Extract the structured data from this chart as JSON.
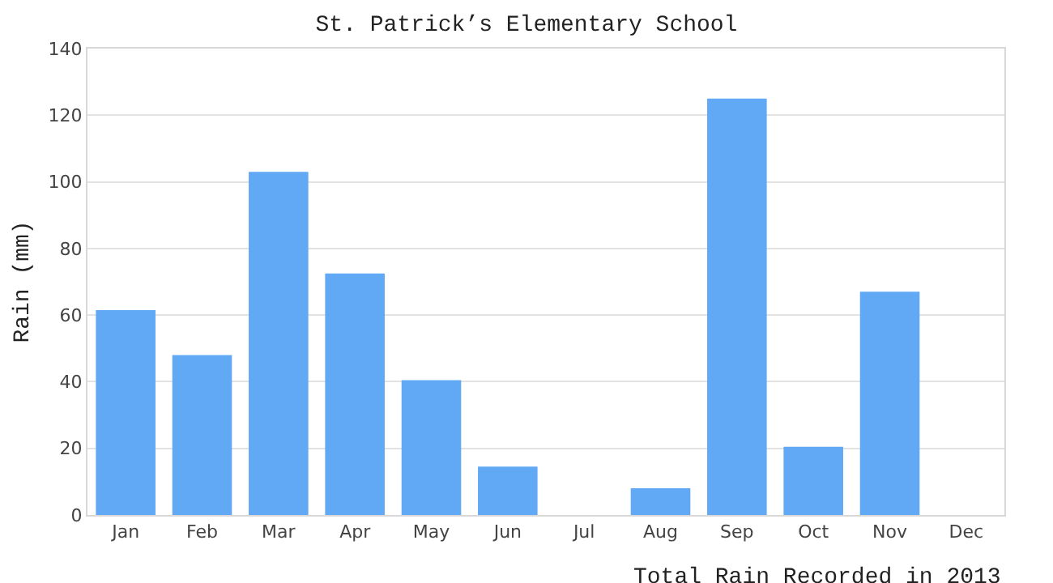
{
  "chart_data": {
    "type": "bar",
    "title": "St. Patrick’s Elementary School",
    "xlabel": "Total Rain Recorded in 2013",
    "ylabel": "Rain (mm)",
    "categories": [
      "Jan",
      "Feb",
      "Mar",
      "Apr",
      "May",
      "Jun",
      "Jul",
      "Aug",
      "Sep",
      "Oct",
      "Nov",
      "Dec"
    ],
    "values": [
      61.5,
      48,
      103,
      72.5,
      40.5,
      14.5,
      0,
      8,
      125,
      20.5,
      67,
      0
    ],
    "color": "#61a9f4",
    "ylim": [
      0,
      140
    ],
    "yticks": [
      0,
      20,
      40,
      60,
      80,
      100,
      120,
      140
    ],
    "grid": "y"
  }
}
